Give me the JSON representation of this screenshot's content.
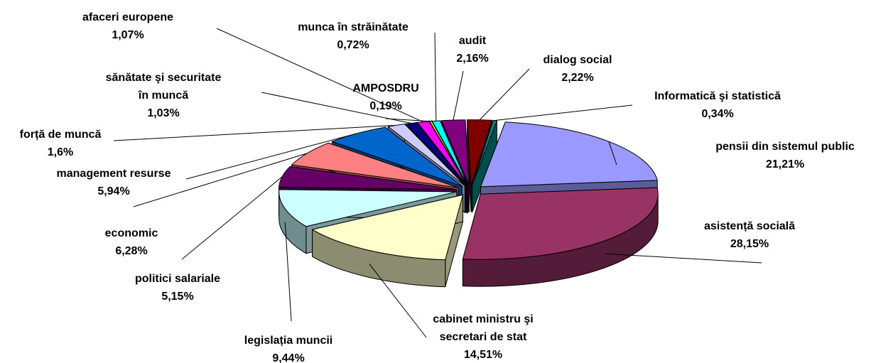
{
  "chart_data": {
    "type": "pie",
    "categories": [
      "pensii din sistemul public",
      "asistență socială",
      "cabinet ministru şi secretari de stat",
      "legislația muncii",
      "politici salariale",
      "economic",
      "management resurse",
      "forță de muncă",
      "sănătate şi securitate în muncă",
      "afaceri europene",
      "AMPOSDRU",
      "munca în străinătate",
      "audit",
      "dialog social",
      "Informatică şi statistică"
    ],
    "values": [
      21.21,
      28.15,
      14.51,
      9.44,
      5.15,
      6.28,
      5.94,
      1.6,
      1.03,
      1.07,
      0.19,
      0.72,
      2.16,
      2.22,
      0.34
    ],
    "value_labels": [
      "21,21%",
      "28,15%",
      "14,51%",
      "9,44%",
      "5,15%",
      "6,28%",
      "5,94%",
      "1,6%",
      "1,03%",
      "1,07%",
      "0,19%",
      "0,72%",
      "2,16%",
      "2,22%",
      "0,34%"
    ],
    "colors": [
      "#9999FF",
      "#993366",
      "#FFFFCC",
      "#CCFFFF",
      "#660066",
      "#FF8080",
      "#0066CC",
      "#CCCCFF",
      "#000080",
      "#FF00FF",
      "#FFFF00",
      "#00FFFF",
      "#800080",
      "#800000",
      "#008080"
    ]
  }
}
